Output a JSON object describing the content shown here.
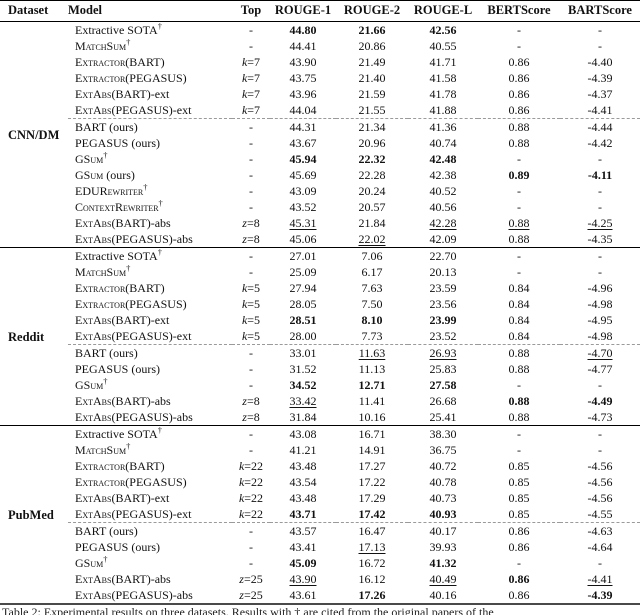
{
  "table": {
    "dagger": "†",
    "columns": [
      "Dataset",
      "Model",
      "Top",
      "ROUGE-1",
      "ROUGE-2",
      "ROUGE-L",
      "BERTScore",
      "BARTScore"
    ],
    "sections": [
      {
        "dataset": "CNN/DM",
        "groups": [
          [
            {
              "m": "Extractive SOTA",
              "sc": 0,
              "dg": 1,
              "tl": "",
              "top": "-",
              "c": [
                "44.80|b",
                "21.66|b",
                "42.56|b",
                "-",
                "-"
              ]
            },
            {
              "m": "MatchSum",
              "sc": 1,
              "dg": 1,
              "tl": "",
              "top": "-",
              "c": [
                "44.41",
                "20.86",
                "40.55",
                "-",
                "-"
              ]
            },
            {
              "m": "Extractor(BART)",
              "sc": 1,
              "dg": 0,
              "tl": "",
              "top": "k=7",
              "c": [
                "43.90",
                "21.49",
                "41.71",
                "0.86",
                "-4.40"
              ]
            },
            {
              "m": "Extractor(PEGASUS)",
              "sc": 1,
              "dg": 0,
              "tl": "",
              "top": "k=7",
              "c": [
                "43.75",
                "21.40",
                "41.58",
                "0.86",
                "-4.39"
              ]
            },
            {
              "m": "ExtAbs(BART)",
              "sc": 1,
              "dg": 0,
              "tl": "-ext",
              "top": "k=7",
              "c": [
                "43.96",
                "21.59",
                "41.78",
                "0.86",
                "-4.37"
              ]
            },
            {
              "m": "ExtAbs(PEGASUS)",
              "sc": 1,
              "dg": 0,
              "tl": "-ext",
              "top": "k=7",
              "c": [
                "44.04",
                "21.55",
                "41.88",
                "0.86",
                "-4.41"
              ]
            }
          ],
          [
            {
              "m": "BART (ours)",
              "sc": 0,
              "dg": 0,
              "tl": "",
              "top": "-",
              "c": [
                "44.31",
                "21.34",
                "41.36",
                "0.88",
                "-4.44"
              ]
            },
            {
              "m": "PEGASUS (ours)",
              "sc": 0,
              "dg": 0,
              "tl": "",
              "top": "-",
              "c": [
                "43.67",
                "20.96",
                "40.74",
                "0.88",
                "-4.42"
              ]
            },
            {
              "m": "GSum",
              "sc": 1,
              "dg": 1,
              "tl": "",
              "top": "-",
              "c": [
                "45.94|b",
                "22.32|b",
                "42.48|b",
                "-",
                "-"
              ]
            },
            {
              "m": "GSum",
              "sc": 1,
              "dg": 0,
              "tl": " (ours)",
              "top": "-",
              "c": [
                "45.69",
                "22.28",
                "42.38",
                "0.89|b",
                "-4.11|b"
              ]
            },
            {
              "m": "EDURewriter",
              "sc": 1,
              "dg": 1,
              "tl": "",
              "top": "-",
              "c": [
                "43.09",
                "20.24",
                "40.52",
                "-",
                "-"
              ]
            },
            {
              "m": "ContextRewriter",
              "sc": 1,
              "dg": 1,
              "tl": "",
              "top": "-",
              "c": [
                "43.52",
                "20.57",
                "40.56",
                "-",
                "-"
              ]
            },
            {
              "m": "ExtAbs(BART)",
              "sc": 1,
              "dg": 0,
              "tl": "-abs",
              "top": "z=8",
              "c": [
                "45.31|u",
                "21.84",
                "42.28|u",
                "0.88|u",
                "-4.25|u"
              ]
            },
            {
              "m": "ExtAbs(PEGASUS)",
              "sc": 1,
              "dg": 0,
              "tl": "-abs",
              "top": "z=8",
              "c": [
                "45.06",
                "22.02|u",
                "42.09",
                "0.88",
                "-4.35"
              ]
            }
          ]
        ]
      },
      {
        "dataset": "Reddit",
        "groups": [
          [
            {
              "m": "Extractive SOTA",
              "sc": 0,
              "dg": 1,
              "tl": "",
              "top": "-",
              "c": [
                "27.01",
                "7.06",
                "22.70",
                "-",
                "-"
              ]
            },
            {
              "m": "MatchSum",
              "sc": 1,
              "dg": 1,
              "tl": "",
              "top": "-",
              "c": [
                "25.09",
                "6.17",
                "20.13",
                "-",
                "-"
              ]
            },
            {
              "m": "Extractor(BART)",
              "sc": 1,
              "dg": 0,
              "tl": "",
              "top": "k=5",
              "c": [
                "27.94",
                "7.63",
                "23.59",
                "0.84",
                "-4.96"
              ]
            },
            {
              "m": "Extractor(PEGASUS)",
              "sc": 1,
              "dg": 0,
              "tl": "",
              "top": "k=5",
              "c": [
                "28.05",
                "7.50",
                "23.56",
                "0.84",
                "-4.98"
              ]
            },
            {
              "m": "ExtAbs(BART)",
              "sc": 1,
              "dg": 0,
              "tl": "-ext",
              "top": "k=5",
              "c": [
                "28.51|b",
                "8.10|b",
                "23.99|b",
                "0.84",
                "-4.95"
              ]
            },
            {
              "m": "ExtAbs(PEGASUS)",
              "sc": 1,
              "dg": 0,
              "tl": "-ext",
              "top": "k=5",
              "c": [
                "28.00",
                "7.73",
                "23.52",
                "0.84",
                "-4.98"
              ]
            }
          ],
          [
            {
              "m": "BART (ours)",
              "sc": 0,
              "dg": 0,
              "tl": "",
              "top": "-",
              "c": [
                "33.01",
                "11.63|u",
                "26.93|u",
                "0.88",
                "-4.70|u"
              ]
            },
            {
              "m": "PEGASUS (ours)",
              "sc": 0,
              "dg": 0,
              "tl": "",
              "top": "-",
              "c": [
                "31.52",
                "11.13",
                "25.83",
                "0.88",
                "-4.77"
              ]
            },
            {
              "m": "GSum",
              "sc": 1,
              "dg": 1,
              "tl": "",
              "top": "-",
              "c": [
                "34.52|b",
                "12.71|b",
                "27.58|b",
                "-",
                "-"
              ]
            },
            {
              "m": "ExtAbs(BART)",
              "sc": 1,
              "dg": 0,
              "tl": "-abs",
              "top": "z=8",
              "c": [
                "33.42|u",
                "11.41",
                "26.68",
                "0.88|b",
                "-4.49|b"
              ]
            },
            {
              "m": "ExtAbs(PEGASUS)",
              "sc": 1,
              "dg": 0,
              "tl": "-abs",
              "top": "z=8",
              "c": [
                "31.84",
                "10.16",
                "25.41",
                "0.88",
                "-4.73"
              ]
            }
          ]
        ]
      },
      {
        "dataset": "PubMed",
        "groups": [
          [
            {
              "m": "Extractive SOTA",
              "sc": 0,
              "dg": 1,
              "tl": "",
              "top": "-",
              "c": [
                "43.08",
                "16.71",
                "38.30",
                "-",
                "-"
              ]
            },
            {
              "m": "MatchSum",
              "sc": 1,
              "dg": 1,
              "tl": "",
              "top": "-",
              "c": [
                "41.21",
                "14.91",
                "36.75",
                "-",
                "-"
              ]
            },
            {
              "m": "Extractor(BART)",
              "sc": 1,
              "dg": 0,
              "tl": "",
              "top": "k=22",
              "c": [
                "43.48",
                "17.27",
                "40.72",
                "0.85",
                "-4.56"
              ]
            },
            {
              "m": "Extractor(PEGASUS)",
              "sc": 1,
              "dg": 0,
              "tl": "",
              "top": "k=22",
              "c": [
                "43.54",
                "17.22",
                "40.78",
                "0.85",
                "-4.56"
              ]
            },
            {
              "m": "ExtAbs(BART)",
              "sc": 1,
              "dg": 0,
              "tl": "-ext",
              "top": "k=22",
              "c": [
                "43.48",
                "17.29",
                "40.73",
                "0.85",
                "-4.56"
              ]
            },
            {
              "m": "ExtAbs(PEGASUS)",
              "sc": 1,
              "dg": 0,
              "tl": "-ext",
              "top": "k=22",
              "c": [
                "43.71|b",
                "17.42|b",
                "40.93|b",
                "0.85",
                "-4.55"
              ]
            }
          ],
          [
            {
              "m": "BART (ours)",
              "sc": 0,
              "dg": 0,
              "tl": "",
              "top": "-",
              "c": [
                "43.57",
                "16.47",
                "40.17",
                "0.86",
                "-4.63"
              ]
            },
            {
              "m": "PEGASUS (ours)",
              "sc": 0,
              "dg": 0,
              "tl": "",
              "top": "-",
              "c": [
                "43.41",
                "17.13|u",
                "39.93",
                "0.86",
                "-4.64"
              ]
            },
            {
              "m": "GSum",
              "sc": 1,
              "dg": 1,
              "tl": "",
              "top": "-",
              "c": [
                "45.09|b",
                "16.72",
                "41.32|b",
                "-",
                "-"
              ]
            },
            {
              "m": "ExtAbs(BART)",
              "sc": 1,
              "dg": 0,
              "tl": "-abs",
              "top": "z=25",
              "c": [
                "43.90|u",
                "16.12",
                "40.49|u",
                "0.86|b",
                "-4.41|u"
              ]
            },
            {
              "m": "ExtAbs(PEGASUS)",
              "sc": 1,
              "dg": 0,
              "tl": "-abs",
              "top": "z=25",
              "c": [
                "43.61",
                "17.26|b",
                "40.16",
                "0.86",
                "-4.39|b"
              ]
            }
          ]
        ]
      }
    ]
  },
  "caption": "Table 2: Experimental results on three datasets. Results with † are cited from the original papers of the"
}
